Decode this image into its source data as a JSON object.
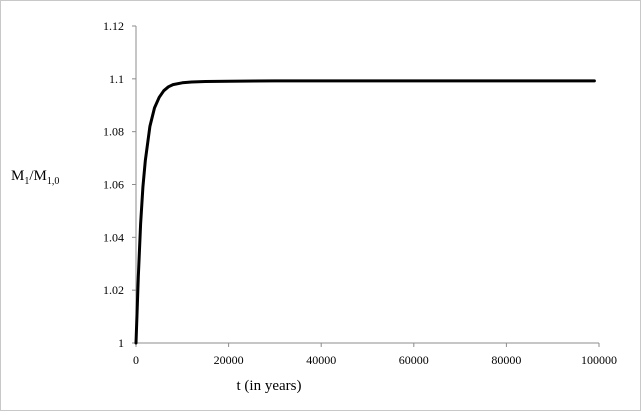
{
  "chart_data": {
    "type": "line",
    "title": "",
    "xlabel": "t (in years)",
    "ylabel": {
      "base": "M",
      "sub1": "1",
      "sep": "/M",
      "sub2": "1,0"
    },
    "xlim": [
      0,
      100000
    ],
    "ylim": [
      1,
      1.12
    ],
    "xticks": [
      "0",
      "20000",
      "40000",
      "60000",
      "80000",
      "100000"
    ],
    "yticks": [
      "1",
      "1.02",
      "1.04",
      "1.06",
      "1.08",
      "1.1",
      "1.12"
    ],
    "grid": false,
    "legend": "none",
    "series": [
      {
        "color": "#000000",
        "x": [
          0,
          250,
          500,
          1000,
          1500,
          2000,
          3000,
          4000,
          5000,
          6000,
          7000,
          8000,
          10000,
          12000,
          15000,
          20000,
          30000,
          40000,
          50000,
          60000,
          70000,
          80000,
          90000,
          99000
        ],
        "y": [
          1.0,
          1.013,
          1.025,
          1.045,
          1.059,
          1.069,
          1.082,
          1.089,
          1.093,
          1.0955,
          1.097,
          1.0978,
          1.0985,
          1.0988,
          1.099,
          1.0991,
          1.0992,
          1.0992,
          1.0992,
          1.0992,
          1.0992,
          1.0992,
          1.0992,
          1.0992
        ]
      }
    ]
  }
}
